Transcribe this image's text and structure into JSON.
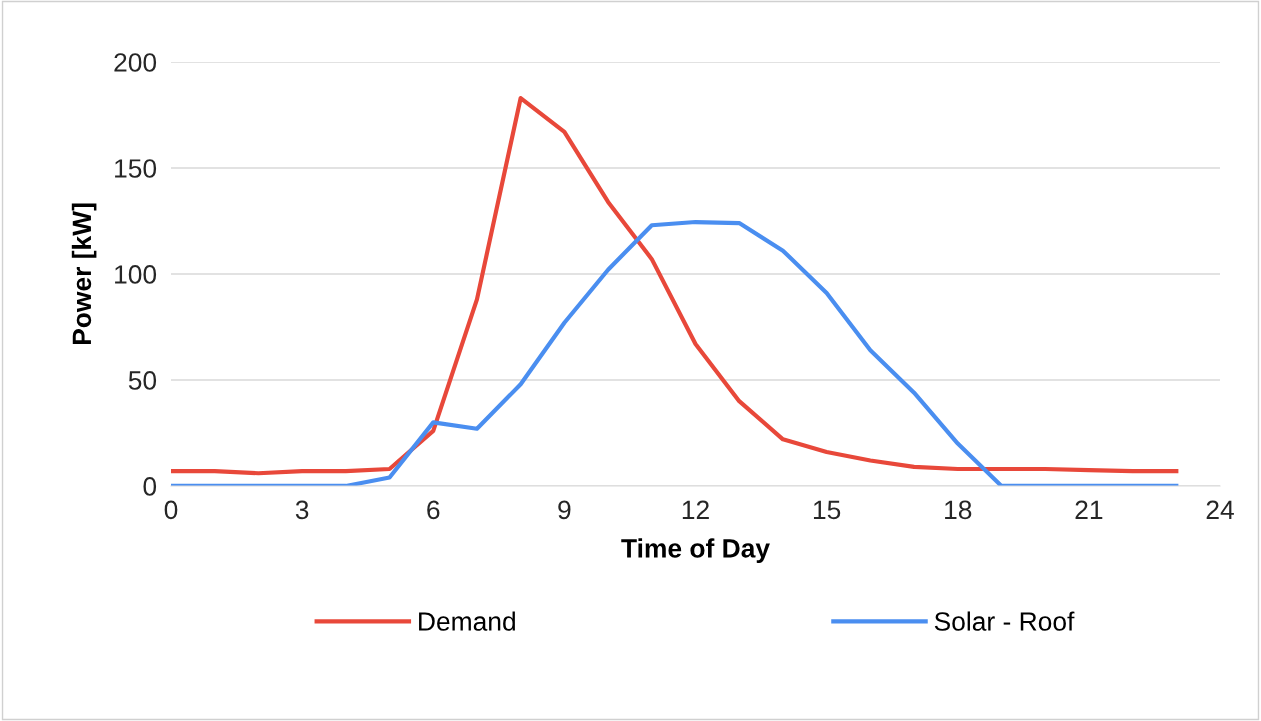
{
  "chart_data": {
    "type": "line",
    "xlabel": "Time of Day",
    "ylabel": "Power [kW]",
    "x": [
      0,
      1,
      2,
      3,
      4,
      5,
      6,
      7,
      8,
      9,
      10,
      11,
      12,
      13,
      14,
      15,
      16,
      17,
      18,
      19,
      20,
      21,
      22,
      23
    ],
    "series": [
      {
        "name": "Demand",
        "color": "#e8483a",
        "values": [
          7,
          7,
          6,
          7,
          7,
          8,
          26,
          88,
          183,
          167,
          134,
          107,
          67,
          40,
          22,
          16,
          12,
          9,
          8,
          8,
          8,
          7.5,
          7,
          7
        ]
      },
      {
        "name": "Solar - Roof",
        "color": "#4a8ef0",
        "values": [
          0,
          0,
          0,
          0,
          0,
          4,
          30,
          27,
          48,
          77,
          102,
          123,
          124.5,
          124,
          111,
          91,
          64,
          44,
          20,
          0,
          0,
          0,
          0,
          0
        ]
      }
    ],
    "xlim": [
      0,
      24
    ],
    "xticks": [
      0,
      3,
      6,
      9,
      12,
      15,
      18,
      21,
      24
    ],
    "ylim": [
      0,
      200
    ],
    "yticks": [
      0,
      50,
      100,
      150,
      200
    ],
    "grid": "y",
    "legend": "bottom",
    "marker": "none",
    "line_style": "solid"
  }
}
